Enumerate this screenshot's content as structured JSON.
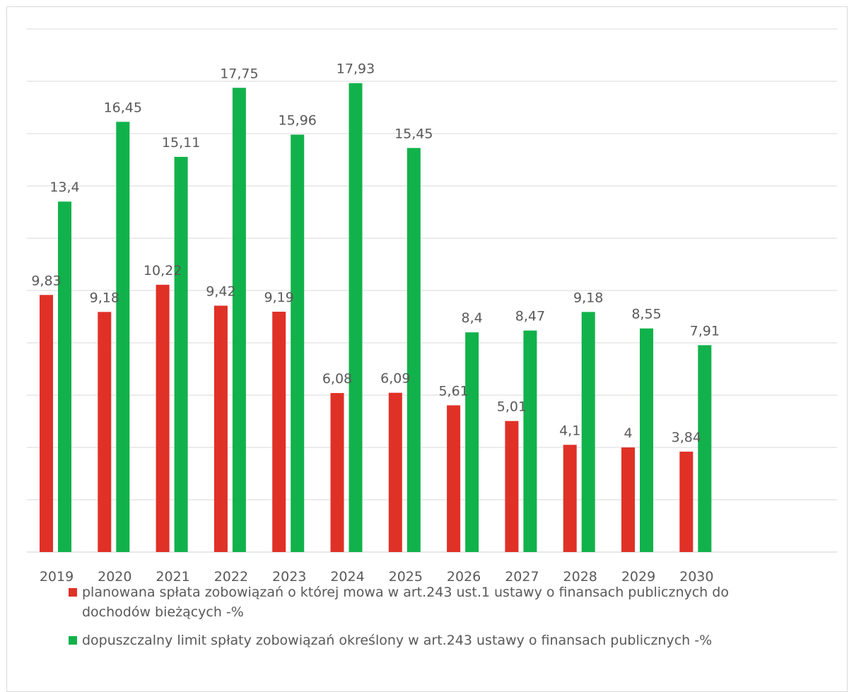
{
  "chart_data": {
    "type": "bar",
    "categories": [
      "2019",
      "2020",
      "2021",
      "2022",
      "2023",
      "2024",
      "2025",
      "2026",
      "2027",
      "2028",
      "2029",
      "2030"
    ],
    "series": [
      {
        "name": "planowana spłata zobowiązań o której mowa w art.243 ust.1 ustawy o finansach publicznych do dochodów bieżących -%",
        "color": "#e03127",
        "values": [
          9.83,
          9.18,
          10.22,
          9.42,
          9.19,
          6.08,
          6.09,
          5.61,
          5.01,
          4.1,
          4,
          3.84
        ],
        "labels": [
          "9,83",
          "9,18",
          "10,22",
          "9,42",
          "9,19",
          "6,08",
          "6,09",
          "5,61",
          "5,01",
          "4,1",
          "4",
          "3,84"
        ]
      },
      {
        "name": "dopuszczalny limit spłaty zobowiązań określony w art.243 ustawy o finansach publicznych -%",
        "color": "#11b24b",
        "values": [
          13.4,
          16.45,
          15.11,
          17.75,
          15.96,
          17.93,
          15.45,
          8.4,
          8.47,
          9.18,
          8.55,
          7.91
        ],
        "labels": [
          "13,4",
          "16,45",
          "15,11",
          "17,75",
          "15,96",
          "17,93",
          "15,45",
          "8,4",
          "8,47",
          "9,18",
          "8,55",
          "7,91"
        ]
      }
    ],
    "ylim": [
      0,
      20
    ],
    "gridlines": true,
    "legend_position": "bottom"
  }
}
